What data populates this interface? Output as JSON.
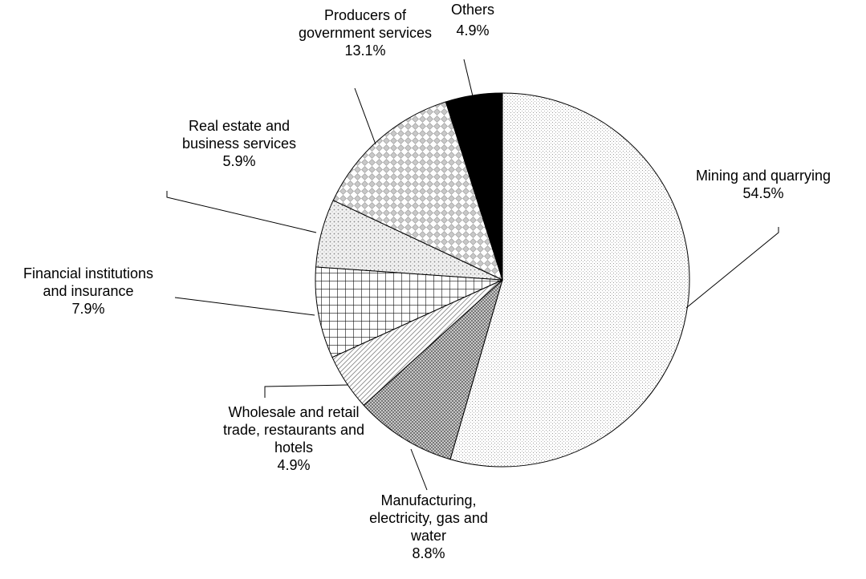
{
  "chart_data": {
    "type": "pie",
    "title": "",
    "unit": "%",
    "slices": [
      {
        "name": "mining",
        "lines": [
          "Mining and quarrying"
        ],
        "value": 54.5,
        "value_label": "54.5%",
        "pattern": "dots-fine"
      },
      {
        "name": "manufacturing",
        "lines": [
          "Manufacturing,",
          "electricity, gas and",
          "water"
        ],
        "value": 8.8,
        "value_label": "8.8%",
        "pattern": "crosshatch-fine"
      },
      {
        "name": "wholesale",
        "lines": [
          "Wholesale and retail",
          "trade, restaurants and",
          "hotels"
        ],
        "value": 4.9,
        "value_label": "4.9%",
        "pattern": "diagonal"
      },
      {
        "name": "financial",
        "lines": [
          "Financial institutions",
          "and insurance"
        ],
        "value": 7.9,
        "value_label": "7.9%",
        "pattern": "grid"
      },
      {
        "name": "real-estate",
        "lines": [
          "Real estate and",
          "business services"
        ],
        "value": 5.9,
        "value_label": "5.9%",
        "pattern": "dots-medium"
      },
      {
        "name": "government",
        "lines": [
          "Producers of",
          "government services"
        ],
        "value": 13.1,
        "value_label": "13.1%",
        "pattern": "diamond"
      },
      {
        "name": "others",
        "lines": [
          "Others"
        ],
        "value": 4.9,
        "value_label": "4.9%",
        "pattern": "solid-black"
      }
    ]
  }
}
